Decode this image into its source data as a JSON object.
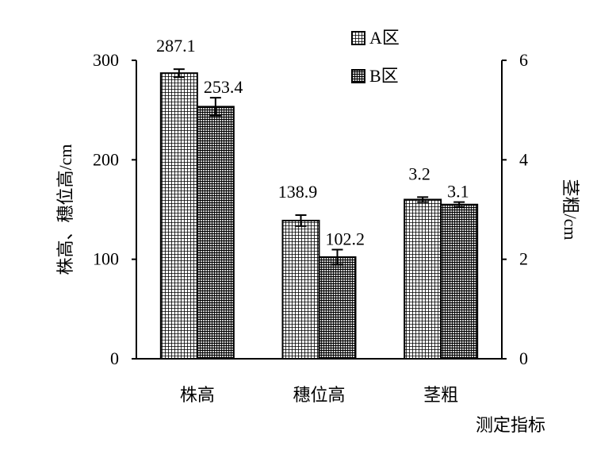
{
  "chart_data": {
    "type": "bar",
    "categories": [
      "株高",
      "穗位高",
      "茎粗"
    ],
    "series": [
      {
        "name": "A区",
        "values": [
          287.1,
          138.9,
          3.2
        ],
        "errors": [
          4.0,
          5.5,
          0.05
        ],
        "pattern": "grid"
      },
      {
        "name": "B区",
        "values": [
          253.4,
          102.2,
          3.1
        ],
        "errors": [
          9.0,
          7.5,
          0.05
        ],
        "pattern": "dense"
      }
    ],
    "value_axis_for_category": [
      "left",
      "left",
      "right"
    ],
    "data_labels": [
      [
        "287.1",
        "138.9",
        "3.2"
      ],
      [
        "253.4",
        "102.2",
        "3.1"
      ]
    ],
    "xlabel": "测定指标",
    "ylabel_left": "株高、穗位高/cm",
    "ylabel_right": "茎粗/cm",
    "ylim_left": [
      0,
      300
    ],
    "yticks_left": [
      "0",
      "100",
      "200",
      "300"
    ],
    "ylim_right": [
      0,
      6
    ],
    "yticks_right": [
      "0",
      "2",
      "4",
      "6"
    ],
    "legend_position": "top-center",
    "grid": false,
    "colors": {
      "axis": "#000000",
      "bar_fill": "#ffffff",
      "pattern": "#000000"
    }
  }
}
